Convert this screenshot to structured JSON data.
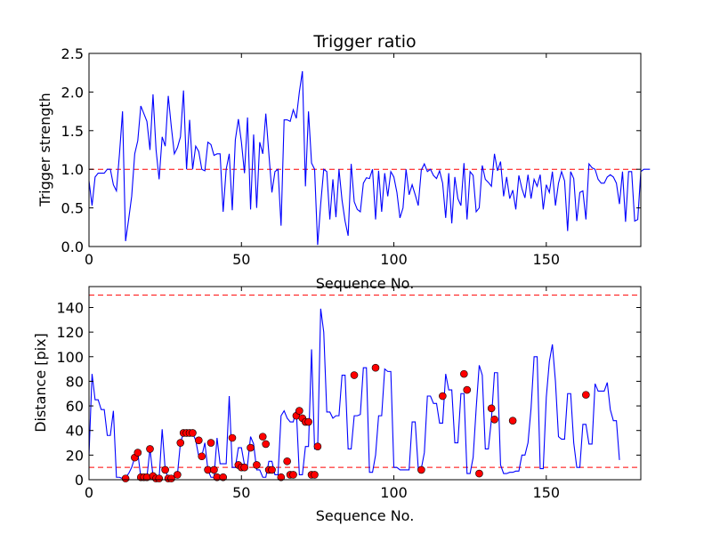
{
  "chart_data": [
    {
      "type": "line",
      "title": "Trigger ratio",
      "xlabel": "Sequence No.",
      "ylabel": "Trigger strength",
      "xlim": [
        0,
        181
      ],
      "ylim": [
        0,
        2.5
      ],
      "xticks": [
        0,
        50,
        100,
        150
      ],
      "yticks": [
        0.0,
        0.5,
        1.0,
        1.5,
        2.0,
        2.5
      ],
      "ytick_format": 1,
      "grid": false,
      "hlines": [
        {
          "y": 1.0,
          "color": "#ff0000",
          "style": "dashed"
        }
      ],
      "series": [
        {
          "color": "#0000ff",
          "values": [
            0.85,
            0.53,
            0.9,
            0.95,
            0.95,
            0.95,
            1.0,
            1.0,
            0.8,
            0.72,
            1.2,
            1.75,
            0.07,
            0.35,
            0.65,
            1.2,
            1.37,
            1.82,
            1.72,
            1.62,
            1.25,
            1.97,
            1.25,
            0.87,
            1.42,
            1.3,
            1.95,
            1.55,
            1.2,
            1.28,
            1.42,
            2.02,
            1.0,
            1.64,
            1.0,
            1.3,
            1.23,
            1.0,
            0.98,
            1.35,
            1.32,
            1.18,
            1.2,
            1.2,
            0.45,
            1.0,
            1.2,
            0.47,
            1.38,
            1.65,
            1.35,
            0.95,
            1.67,
            0.48,
            1.45,
            0.5,
            1.35,
            1.2,
            1.72,
            1.2,
            0.7,
            0.97,
            1.0,
            0.27,
            1.64,
            1.64,
            1.62,
            1.77,
            1.66,
            2.0,
            2.27,
            0.78,
            1.75,
            1.08,
            1.0,
            0.02,
            0.55,
            1.0,
            0.97,
            0.35,
            0.87,
            0.38,
            1.0,
            0.6,
            0.33,
            0.14,
            1.07,
            0.58,
            0.48,
            0.45,
            0.82,
            0.89,
            0.88,
            1.0,
            0.35,
            0.98,
            0.45,
            0.95,
            0.65,
            0.97,
            0.9,
            0.7,
            0.37,
            0.5,
            1.0,
            0.67,
            0.8,
            0.67,
            0.53,
            0.99,
            1.07,
            0.97,
            1.0,
            0.92,
            0.88,
            0.98,
            0.82,
            0.37,
            0.95,
            0.3,
            0.9,
            0.62,
            0.53,
            1.08,
            0.35,
            0.97,
            0.92,
            0.45,
            0.5,
            1.05,
            0.87,
            0.83,
            0.78,
            1.2,
            0.98,
            1.1,
            0.65,
            0.9,
            0.62,
            0.73,
            0.48,
            0.92,
            0.75,
            0.63,
            0.93,
            0.62,
            0.87,
            0.78,
            0.93,
            0.48,
            0.8,
            0.7,
            0.97,
            0.53,
            0.82,
            0.97,
            0.85,
            0.2,
            0.97,
            0.88,
            0.33,
            0.7,
            0.72,
            0.35,
            1.07,
            1.02,
            1.0,
            0.87,
            0.82,
            0.82,
            0.9,
            0.93,
            0.9,
            0.82,
            0.55,
            0.97,
            0.32,
            0.97,
            0.97,
            0.33,
            0.35,
            0.97,
            1.0,
            1.0,
            1.0
          ]
        }
      ]
    },
    {
      "type": "line",
      "title": "",
      "xlabel": "Sequence No.",
      "ylabel": "Distance [pix]",
      "xlim": [
        0,
        181
      ],
      "ylim": [
        0,
        157
      ],
      "xticks": [
        0,
        50,
        100,
        150
      ],
      "yticks": [
        0,
        20,
        40,
        60,
        80,
        100,
        120,
        140
      ],
      "ytick_format": 0,
      "grid": false,
      "hlines": [
        {
          "y": 150,
          "color": "#ff0000",
          "style": "dashed"
        },
        {
          "y": 10,
          "color": "#ff0000",
          "style": "dashed"
        }
      ],
      "series": [
        {
          "color": "#0000ff",
          "values": [
            20,
            86,
            65,
            65,
            57,
            57,
            36,
            36,
            56,
            2,
            2,
            1,
            2,
            5,
            10,
            18,
            22,
            2,
            2,
            2,
            25,
            3,
            1,
            1,
            41,
            8,
            1,
            1,
            2,
            4,
            30,
            38,
            38,
            38,
            38,
            32,
            19,
            19,
            30,
            8,
            2,
            2,
            34,
            13,
            13,
            13,
            68,
            10,
            10,
            26,
            26,
            12,
            12,
            35,
            29,
            8,
            8,
            2,
            2,
            15,
            15,
            4,
            4,
            52,
            56,
            50,
            47,
            47,
            57,
            4,
            4,
            27,
            27,
            106,
            25,
            25,
            139,
            120,
            55,
            55,
            50,
            52,
            52,
            85,
            85,
            25,
            25,
            52,
            52,
            53,
            91,
            91,
            6,
            6,
            20,
            52,
            52,
            90,
            88,
            88,
            10,
            10,
            8,
            8,
            8,
            8,
            47,
            47,
            9,
            9,
            22,
            68,
            68,
            62,
            62,
            46,
            46,
            86,
            73,
            73,
            30,
            30,
            70,
            70,
            5,
            5,
            18,
            58,
            93,
            85,
            25,
            25,
            49,
            87,
            87,
            12,
            5,
            5,
            6,
            6,
            7,
            7,
            20,
            20,
            30,
            58,
            100,
            100,
            9,
            9,
            67,
            96,
            110,
            80,
            35,
            33,
            33,
            70,
            70,
            30,
            10,
            10,
            45,
            45,
            29,
            29,
            78,
            72,
            72,
            72,
            79,
            57,
            48,
            48,
            16
          ]
        },
        {
          "color": "#ff0000",
          "marker": "circle",
          "line": false,
          "x": [
            12,
            15,
            16,
            17,
            18,
            19,
            20,
            21,
            22,
            23,
            25,
            26,
            27,
            29,
            30,
            31,
            32,
            33,
            34,
            36,
            37,
            39,
            40,
            41,
            42,
            44,
            47,
            49,
            50,
            51,
            53,
            55,
            57,
            58,
            59,
            60,
            63,
            65,
            66,
            67,
            68,
            69,
            70,
            71,
            72,
            73,
            74,
            75,
            87,
            94,
            109,
            116,
            123,
            124,
            128,
            132,
            133,
            139,
            163
          ],
          "values": [
            1,
            18,
            22,
            2,
            2,
            2,
            25,
            3,
            1,
            1,
            8,
            1,
            1,
            4,
            30,
            38,
            38,
            38,
            38,
            32,
            19,
            8,
            30,
            8,
            2,
            2,
            34,
            12,
            10,
            10,
            26,
            12,
            35,
            29,
            8,
            8,
            2,
            15,
            4,
            4,
            52,
            56,
            50,
            47,
            47,
            4,
            4,
            27,
            85,
            91,
            8,
            68,
            86,
            73,
            5,
            58,
            49,
            48,
            69
          ]
        }
      ]
    }
  ]
}
